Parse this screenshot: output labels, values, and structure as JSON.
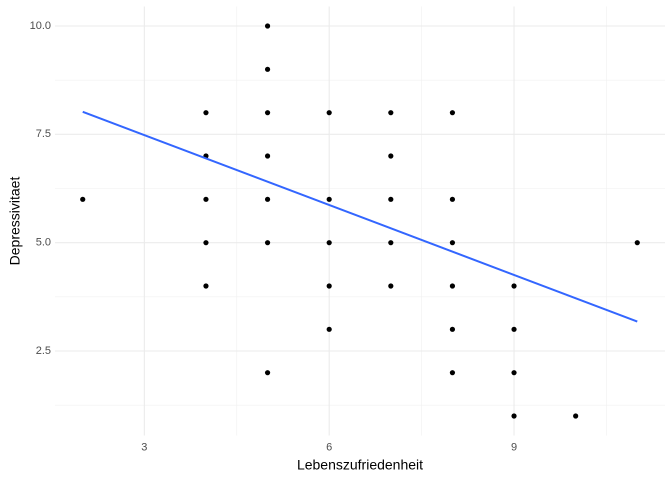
{
  "chart_data": {
    "type": "scatter",
    "x_label": "Lebenszufriedenheit",
    "y_label": "Depressivitaet",
    "points": {
      "color": "#000000",
      "x": [
        2,
        4,
        4,
        4,
        4,
        4,
        5,
        5,
        5,
        5,
        5,
        5,
        5,
        6,
        6,
        6,
        6,
        6,
        7,
        7,
        7,
        7,
        7,
        8,
        8,
        8,
        8,
        8,
        8,
        9,
        9,
        9,
        9,
        10,
        11
      ],
      "y": [
        6,
        8,
        7,
        6,
        5,
        4,
        10,
        9,
        8,
        7,
        6,
        5,
        2,
        8,
        6,
        5,
        4,
        3,
        8,
        7,
        6,
        5,
        4,
        8,
        6,
        5,
        4,
        3,
        2,
        4,
        3,
        2,
        1,
        1,
        5
      ]
    },
    "fit_line": {
      "color": "#3366ff",
      "x": [
        2,
        11
      ],
      "y": [
        8.02,
        3.18
      ]
    },
    "xlim": [
      1.55,
      11.45
    ],
    "ylim": [
      0.55,
      10.45
    ],
    "xticks": [
      3,
      6,
      9
    ],
    "yticks": [
      {
        "value": 2.5,
        "label": "2.5"
      },
      {
        "value": 5,
        "label": "5.0"
      },
      {
        "value": 7.5,
        "label": "7.5"
      },
      {
        "value": 10,
        "label": "10.0"
      }
    ],
    "grid": true
  }
}
